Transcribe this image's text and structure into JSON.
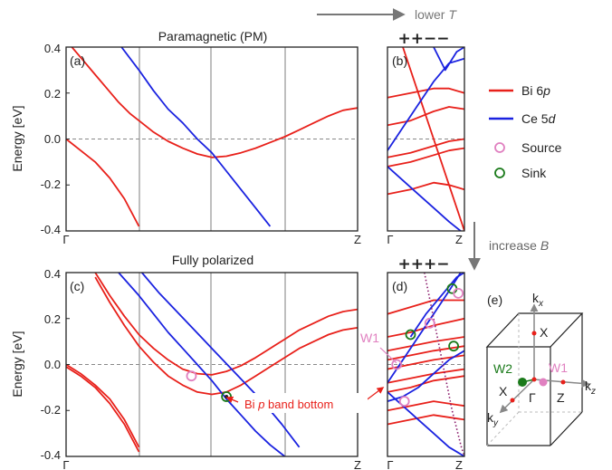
{
  "header": {
    "arrow_label": "lower",
    "arrow_var": "T"
  },
  "side": {
    "arrow_label": "increase",
    "arrow_var": "B"
  },
  "colors": {
    "bi": "#e8201a",
    "ce": "#1a22e0",
    "purple": "#8a1a6a",
    "source": "#e080c0",
    "sink": "#1a7a1a",
    "grid": "#a8a8a8",
    "axis": "#222222"
  },
  "legend": [
    {
      "label": "Bi 6",
      "italic": "p",
      "kind": "line",
      "color": "#e8201a"
    },
    {
      "label": "Ce 5",
      "italic": "d",
      "kind": "line",
      "color": "#1a22e0"
    },
    {
      "label": "Source",
      "italic": "",
      "kind": "circle",
      "color": "#e080c0"
    },
    {
      "label": "Sink",
      "italic": "",
      "kind": "circle",
      "color": "#1a7a1a"
    }
  ],
  "annotation": {
    "text": "Bi",
    "italic": "p",
    "rest": "band bottom"
  },
  "bz": {
    "kx": "k",
    "kx_sub": "x",
    "ky": "k",
    "ky_sub": "y",
    "kz": "k",
    "kz_sub": "z",
    "x_top": "X",
    "x_left": "X",
    "z": "Z",
    "gamma": "Γ",
    "w1": "W1",
    "w2": "W2"
  },
  "chart_data": [
    {
      "id": "a",
      "panel_label": "(a)",
      "type": "line",
      "title": "Paramagnetic (PM)",
      "ylabel": "Energy [eV]",
      "xlim": [
        0,
        1
      ],
      "ylim": [
        -0.4,
        0.4
      ],
      "yticks": [
        "0.4",
        "0.2",
        "0.0",
        "-0.2",
        "-0.4"
      ],
      "xticks": [
        "Γ",
        "Z"
      ],
      "fermi_level": 0,
      "series": [
        {
          "orbital": "Bi 6p",
          "x": [
            0.02,
            0.06,
            0.1,
            0.14,
            0.18,
            0.22,
            0.26,
            0.3,
            0.35,
            0.4,
            0.45,
            0.5,
            0.55,
            0.6,
            0.65,
            0.7,
            0.75,
            0.8,
            0.85,
            0.9,
            0.95,
            1.0
          ],
          "y": [
            0.4,
            0.34,
            0.28,
            0.22,
            0.16,
            0.11,
            0.07,
            0.03,
            -0.01,
            -0.04,
            -0.065,
            -0.08,
            -0.075,
            -0.06,
            -0.04,
            -0.015,
            0.01,
            0.04,
            0.07,
            0.1,
            0.125,
            0.135
          ]
        },
        {
          "orbital": "Bi 6p",
          "x": [
            0.0,
            0.05,
            0.1,
            0.15,
            0.2,
            0.25
          ],
          "y": [
            0.0,
            -0.05,
            -0.1,
            -0.17,
            -0.26,
            -0.38
          ]
        },
        {
          "orbital": "Ce 5d",
          "x": [
            0.19,
            0.25,
            0.3,
            0.35,
            0.4,
            0.45,
            0.5,
            0.55,
            0.6,
            0.65,
            0.7
          ],
          "y": [
            0.4,
            0.3,
            0.21,
            0.13,
            0.07,
            0.0,
            -0.06,
            -0.14,
            -0.22,
            -0.3,
            -0.38
          ]
        }
      ]
    },
    {
      "id": "b",
      "panel_label": "(b)",
      "type": "line",
      "title": "",
      "signs": "++−−",
      "xlim": [
        0,
        1
      ],
      "ylim": [
        -0.4,
        0.4
      ],
      "xticks": [
        "Γ",
        "Z"
      ],
      "fermi_level": 0,
      "series": [
        {
          "orbital": "Bi 6p",
          "x": [
            0.0,
            0.3,
            0.6,
            0.8,
            1.0
          ],
          "y": [
            0.18,
            0.2,
            0.22,
            0.22,
            0.2
          ]
        },
        {
          "orbital": "Bi 6p",
          "x": [
            0.0,
            0.3,
            0.6,
            0.8,
            1.0
          ],
          "y": [
            0.06,
            0.08,
            0.12,
            0.14,
            0.13
          ]
        },
        {
          "orbital": "Bi 6p",
          "x": [
            0.0,
            0.3,
            0.6,
            0.8,
            1.0
          ],
          "y": [
            -0.08,
            -0.06,
            -0.03,
            -0.01,
            0.0
          ]
        },
        {
          "orbital": "Bi 6p",
          "x": [
            0.0,
            0.3,
            0.6,
            0.8,
            1.0
          ],
          "y": [
            -0.12,
            -0.1,
            -0.07,
            -0.05,
            -0.04
          ]
        },
        {
          "orbital": "Bi 6p",
          "x": [
            0.0,
            0.3,
            0.6,
            0.8,
            1.0
          ],
          "y": [
            -0.24,
            -0.22,
            -0.19,
            -0.2,
            -0.22
          ]
        },
        {
          "orbital": "Bi 6p",
          "x": [
            0.2,
            0.4,
            0.6,
            0.8,
            1.0
          ],
          "y": [
            0.4,
            0.2,
            0.0,
            -0.2,
            -0.4
          ]
        },
        {
          "orbital": "Ce 5d",
          "x": [
            0.0,
            0.2,
            0.4,
            0.6,
            0.8,
            1.0
          ],
          "y": [
            -0.05,
            0.05,
            0.15,
            0.25,
            0.33,
            0.35
          ]
        },
        {
          "orbital": "Ce 5d",
          "x": [
            0.6,
            0.75,
            0.9,
            1.0
          ],
          "y": [
            0.4,
            0.3,
            0.38,
            0.4
          ]
        },
        {
          "orbital": "Ce 5d",
          "x": [
            0.0,
            0.2,
            0.4,
            0.6,
            0.8,
            0.95
          ],
          "y": [
            -0.12,
            -0.18,
            -0.24,
            -0.3,
            -0.36,
            -0.4
          ]
        }
      ]
    },
    {
      "id": "c",
      "panel_label": "(c)",
      "type": "line",
      "title": "Fully polarized",
      "ylabel": "Energy [eV]",
      "xlim": [
        0,
        1
      ],
      "ylim": [
        -0.4,
        0.4
      ],
      "yticks": [
        "0.4",
        "0.2",
        "0.0",
        "-0.2",
        "-0.4"
      ],
      "xticks": [
        "Γ",
        "Z"
      ],
      "fermi_level": 0,
      "series": [
        {
          "orbital": "Bi 6p",
          "x": [
            0.1,
            0.15,
            0.2,
            0.25,
            0.3,
            0.35,
            0.4,
            0.45,
            0.5,
            0.55,
            0.6,
            0.65,
            0.7,
            0.75,
            0.8,
            0.85,
            0.9,
            0.95,
            1.0
          ],
          "y": [
            0.4,
            0.3,
            0.21,
            0.13,
            0.07,
            0.02,
            -0.02,
            -0.04,
            -0.045,
            -0.03,
            -0.005,
            0.03,
            0.07,
            0.11,
            0.15,
            0.18,
            0.21,
            0.23,
            0.24
          ]
        },
        {
          "orbital": "Bi 6p",
          "x": [
            0.1,
            0.15,
            0.2,
            0.25,
            0.3,
            0.35,
            0.4,
            0.45,
            0.5,
            0.55,
            0.6,
            0.65,
            0.7,
            0.75,
            0.8,
            0.85,
            0.9,
            0.95,
            1.0
          ],
          "y": [
            0.38,
            0.27,
            0.17,
            0.08,
            0.01,
            -0.05,
            -0.09,
            -0.12,
            -0.13,
            -0.12,
            -0.09,
            -0.05,
            -0.01,
            0.03,
            0.07,
            0.1,
            0.13,
            0.15,
            0.16
          ]
        },
        {
          "orbital": "Bi 6p",
          "x": [
            0.0,
            0.05,
            0.1,
            0.15,
            0.2,
            0.25
          ],
          "y": [
            0.0,
            -0.04,
            -0.09,
            -0.15,
            -0.24,
            -0.36
          ]
        },
        {
          "orbital": "Bi 6p",
          "x": [
            0.0,
            0.05,
            0.1,
            0.15,
            0.2,
            0.25
          ],
          "y": [
            -0.01,
            -0.05,
            -0.1,
            -0.17,
            -0.26,
            -0.38
          ]
        },
        {
          "orbital": "Ce 5d",
          "x": [
            0.18,
            0.25,
            0.3,
            0.35,
            0.4,
            0.45,
            0.5,
            0.55,
            0.6,
            0.65,
            0.7,
            0.75
          ],
          "y": [
            0.4,
            0.3,
            0.22,
            0.14,
            0.07,
            0.0,
            -0.07,
            -0.15,
            -0.22,
            -0.29,
            -0.35,
            -0.4
          ]
        },
        {
          "orbital": "Ce 5d",
          "x": [
            0.26,
            0.32,
            0.38,
            0.44,
            0.5,
            0.56,
            0.62,
            0.68,
            0.74,
            0.8
          ],
          "y": [
            0.4,
            0.31,
            0.23,
            0.15,
            0.07,
            -0.01,
            -0.09,
            -0.17,
            -0.26,
            -0.36
          ]
        }
      ],
      "markers": [
        {
          "kind": "source",
          "x": 0.43,
          "y": -0.05
        },
        {
          "kind": "sink",
          "x": 0.55,
          "y": -0.14
        },
        {
          "kind": "sink-core",
          "x": 0.55,
          "y": -0.14
        }
      ]
    },
    {
      "id": "d",
      "panel_label": "(d)",
      "type": "line",
      "title": "",
      "signs": "+++−",
      "xlim": [
        0,
        1
      ],
      "ylim": [
        -0.4,
        0.4
      ],
      "xticks": [
        "Γ",
        "Z"
      ],
      "fermi_level": 0,
      "series": [
        {
          "orbital": "Bi 6p",
          "x": [
            0.0,
            0.3,
            0.6,
            1.0
          ],
          "y": [
            0.22,
            0.25,
            0.28,
            0.28
          ]
        },
        {
          "orbital": "Bi 6p",
          "x": [
            0.0,
            0.3,
            0.6,
            1.0
          ],
          "y": [
            0.12,
            0.14,
            0.17,
            0.2
          ]
        },
        {
          "orbital": "Bi 6p",
          "x": [
            0.0,
            0.3,
            0.6,
            1.0
          ],
          "y": [
            0.06,
            0.08,
            0.1,
            0.12
          ]
        },
        {
          "orbital": "Bi 6p",
          "x": [
            0.0,
            0.3,
            0.6,
            1.0
          ],
          "y": [
            0.02,
            0.04,
            0.06,
            0.08
          ]
        },
        {
          "orbital": "Bi 6p",
          "x": [
            0.0,
            0.3,
            0.6,
            1.0
          ],
          "y": [
            -0.02,
            0.0,
            0.02,
            0.04
          ]
        },
        {
          "orbital": "Bi 6p",
          "x": [
            0.0,
            0.3,
            0.6,
            1.0
          ],
          "y": [
            -0.08,
            -0.06,
            -0.04,
            -0.02
          ]
        },
        {
          "orbital": "Bi 6p",
          "x": [
            0.0,
            0.3,
            0.6,
            1.0
          ],
          "y": [
            -0.12,
            -0.1,
            -0.07,
            -0.05
          ]
        },
        {
          "orbital": "Bi 6p",
          "x": [
            0.0,
            0.3,
            0.6,
            1.0
          ],
          "y": [
            -0.2,
            -0.18,
            -0.16,
            -0.18
          ]
        },
        {
          "orbital": "Bi 6p",
          "x": [
            0.0,
            0.3,
            0.6,
            1.0
          ],
          "y": [
            -0.26,
            -0.24,
            -0.22,
            -0.24
          ]
        },
        {
          "orbital": "Ce 5d",
          "x": [
            0.0,
            0.2,
            0.4,
            0.6,
            0.8,
            0.95
          ],
          "y": [
            -0.08,
            0.02,
            0.12,
            0.22,
            0.32,
            0.4
          ]
        },
        {
          "orbital": "Ce 5d",
          "x": [
            0.3,
            0.5,
            0.7,
            0.9,
            1.0
          ],
          "y": [
            0.12,
            0.22,
            0.3,
            0.38,
            0.4
          ]
        },
        {
          "orbital": "Ce 5d",
          "x": [
            0.0,
            0.2,
            0.4,
            0.6,
            0.8,
            1.0
          ],
          "y": [
            -0.12,
            -0.18,
            -0.24,
            -0.3,
            -0.36,
            -0.4
          ]
        },
        {
          "orbital": "Ce 5d",
          "x": [
            0.0,
            0.2,
            0.4,
            0.6,
            0.8,
            1.0
          ],
          "y": [
            -0.16,
            -0.14,
            -0.1,
            -0.04,
            0.02,
            0.06
          ]
        }
      ],
      "dotted": {
        "x": [
          0.48,
          0.6,
          0.72,
          0.84,
          0.96,
          1.0
        ],
        "y": [
          0.4,
          0.2,
          0.0,
          -0.2,
          -0.36,
          -0.4
        ]
      },
      "markers": [
        {
          "kind": "sink",
          "x": 0.84,
          "y": 0.33
        },
        {
          "kind": "source",
          "x": 0.92,
          "y": 0.31
        },
        {
          "kind": "source",
          "x": 0.55,
          "y": 0.18
        },
        {
          "kind": "sink",
          "x": 0.3,
          "y": 0.13
        },
        {
          "kind": "sink",
          "x": 0.86,
          "y": 0.08
        },
        {
          "kind": "source",
          "x": 0.12,
          "y": 0.0
        },
        {
          "kind": "source",
          "x": 0.22,
          "y": -0.16
        }
      ]
    }
  ]
}
